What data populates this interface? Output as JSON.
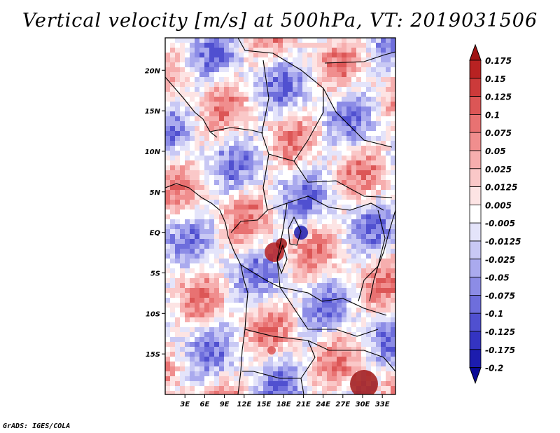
{
  "title": "Vertical velocity [m/s] at 500hPa, VT: 2019031506",
  "credit": "GrADS: IGES/COLA",
  "chart_data": {
    "type": "heatmap",
    "variable": "Vertical velocity",
    "units": "m/s",
    "level": "500hPa",
    "valid_time": "2019031506",
    "x_range_lon": [
      0,
      35
    ],
    "y_range_lat": [
      -20,
      24
    ],
    "x_ticks": [
      {
        "lon": 3,
        "label": "3E"
      },
      {
        "lon": 6,
        "label": "6E"
      },
      {
        "lon": 9,
        "label": "9E"
      },
      {
        "lon": 12,
        "label": "12E"
      },
      {
        "lon": 15,
        "label": "15E"
      },
      {
        "lon": 18,
        "label": "18E"
      },
      {
        "lon": 21,
        "label": "21E"
      },
      {
        "lon": 24,
        "label": "24E"
      },
      {
        "lon": 27,
        "label": "27E"
      },
      {
        "lon": 30,
        "label": "30E"
      },
      {
        "lon": 33,
        "label": "33E"
      }
    ],
    "y_ticks": [
      {
        "lat": 20,
        "label": "20N"
      },
      {
        "lat": 15,
        "label": "15N"
      },
      {
        "lat": 10,
        "label": "10N"
      },
      {
        "lat": 5,
        "label": "5N"
      },
      {
        "lat": 0,
        "label": "EQ"
      },
      {
        "lat": -5,
        "label": "5S"
      },
      {
        "lat": -10,
        "label": "10S"
      },
      {
        "lat": -15,
        "label": "15S"
      }
    ],
    "colorbar": {
      "labels": [
        "0.175",
        "0.15",
        "0.125",
        "0.1",
        "0.075",
        "0.05",
        "0.025",
        "0.0125",
        "0.005",
        "-0.005",
        "-0.0125",
        "-0.025",
        "-0.05",
        "-0.075",
        "-0.1",
        "-0.125",
        "-0.175",
        "-0.2"
      ],
      "colors": [
        "#a01414",
        "#b82222",
        "#cc3a3a",
        "#dc5656",
        "#e87272",
        "#f08e8e",
        "#f6aeae",
        "#fac8c8",
        "#fde4e4",
        "#ffffff",
        "#e4e4fa",
        "#c8c8f4",
        "#aaaaee",
        "#8c8ce6",
        "#6e6edc",
        "#5050d0",
        "#3434c2",
        "#1c1cae",
        "#0a0a96"
      ]
    }
  }
}
